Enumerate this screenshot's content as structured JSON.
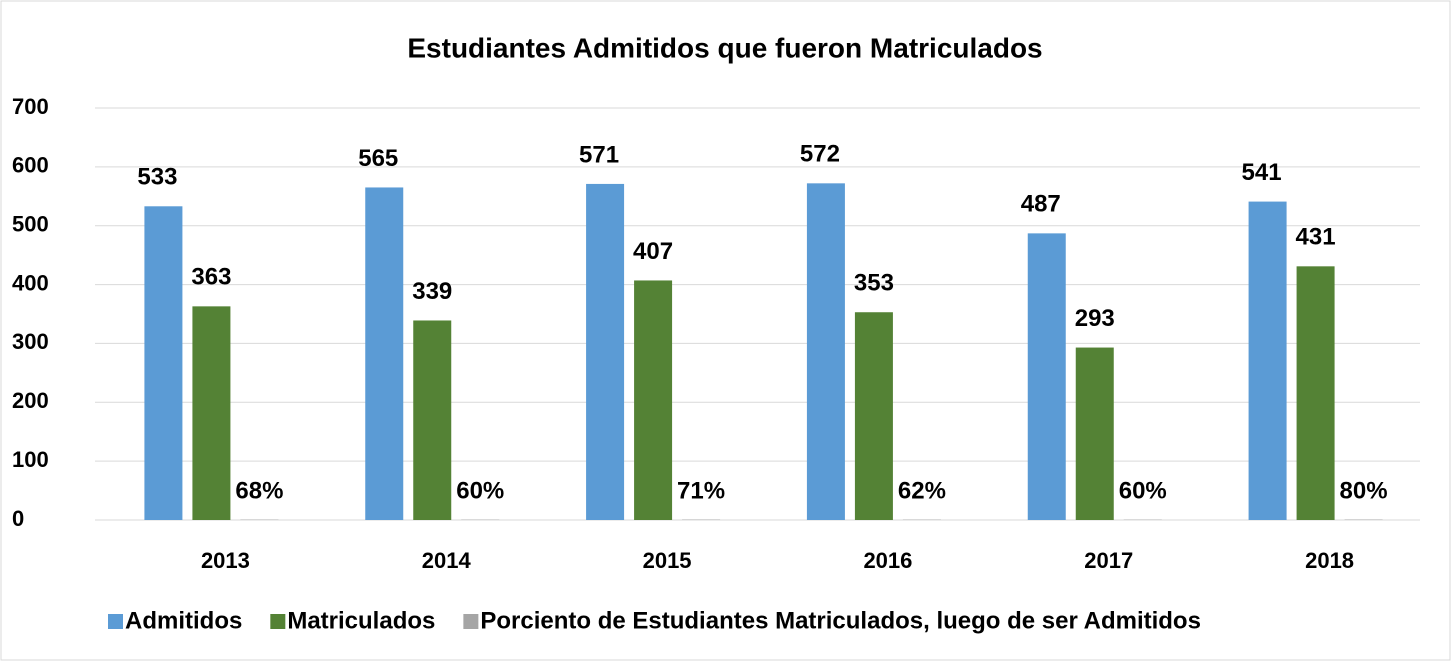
{
  "chart_data": {
    "type": "bar",
    "title": "Estudiantes Admitidos que fueron Matriculados",
    "categories": [
      "2013",
      "2014",
      "2015",
      "2016",
      "2017",
      "2018"
    ],
    "series": [
      {
        "name": "Admitidos",
        "color": "#5b9bd5",
        "values": [
          533,
          565,
          571,
          572,
          487,
          541
        ]
      },
      {
        "name": "Matriculados",
        "color": "#548235",
        "values": [
          363,
          339,
          407,
          353,
          293,
          431
        ]
      },
      {
        "name": "Porciento de Estudiantes Matriculados, luego de ser Admitidos",
        "color": "#a5a5a5",
        "values": [
          0.68,
          0.6,
          0.71,
          0.62,
          0.6,
          0.8
        ],
        "value_labels": [
          "68%",
          "60%",
          "71%",
          "62%",
          "60%",
          "80%"
        ]
      }
    ],
    "ylim": [
      0,
      700
    ],
    "yticks": [
      0,
      100,
      200,
      300,
      400,
      500,
      600,
      700
    ],
    "grid": true,
    "legend": "bottom"
  }
}
